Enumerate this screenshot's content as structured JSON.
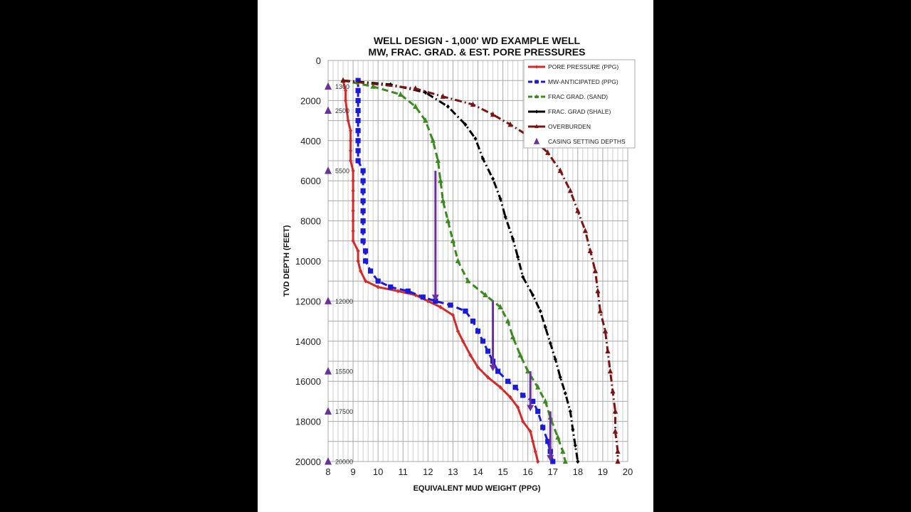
{
  "page": {
    "background": "#ffffff",
    "frame": "#000000"
  },
  "chart_data": {
    "type": "line",
    "title": "WELL DESIGN - 1,000' WD EXAMPLE WELL",
    "subtitle": "MW, FRAC. GRAD. & EST. PORE PRESSURES",
    "xlabel": "EQUIVALENT MUD WEIGHT  (PPG)",
    "ylabel": "TVD  DEPTH  (FEET)",
    "xlim": [
      8,
      20
    ],
    "ylim": [
      0,
      20000
    ],
    "y_inverted": true,
    "grid": true,
    "x_ticks": [
      "8",
      "9",
      "10",
      "11",
      "12",
      "13",
      "14",
      "15",
      "16",
      "17",
      "18",
      "19",
      "20"
    ],
    "y_ticks": [
      "0",
      "2000",
      "4000",
      "6000",
      "8000",
      "10000",
      "12000",
      "14000",
      "16000",
      "18000",
      "20000"
    ],
    "legend_position": "upper right",
    "series": [
      {
        "name": "PORE PRESSURE (PPG)",
        "color": "#d42a2a",
        "style": "solid",
        "marker": "diamond",
        "points": [
          [
            8.6,
            1000
          ],
          [
            8.7,
            1500
          ],
          [
            8.7,
            2000
          ],
          [
            8.8,
            3000
          ],
          [
            8.9,
            3500
          ],
          [
            8.9,
            4000
          ],
          [
            8.9,
            4500
          ],
          [
            8.9,
            5000
          ],
          [
            9.0,
            5500
          ],
          [
            9.0,
            6000
          ],
          [
            9.0,
            6500
          ],
          [
            9.0,
            7000
          ],
          [
            9.0,
            7500
          ],
          [
            9.0,
            8000
          ],
          [
            9.0,
            8500
          ],
          [
            9.0,
            9000
          ],
          [
            9.2,
            9500
          ],
          [
            9.2,
            10000
          ],
          [
            9.3,
            10500
          ],
          [
            9.5,
            11000
          ],
          [
            10.0,
            11300
          ],
          [
            10.8,
            11500
          ],
          [
            11.5,
            11700
          ],
          [
            12.0,
            12000
          ],
          [
            12.5,
            12300
          ],
          [
            13.0,
            12700
          ],
          [
            13.2,
            13500
          ],
          [
            13.4,
            14000
          ],
          [
            13.7,
            14700
          ],
          [
            14.0,
            15300
          ],
          [
            14.4,
            15800
          ],
          [
            14.9,
            16300
          ],
          [
            15.3,
            16800
          ],
          [
            15.6,
            17300
          ],
          [
            15.8,
            18000
          ],
          [
            16.1,
            18500
          ],
          [
            16.2,
            19000
          ],
          [
            16.3,
            19500
          ],
          [
            16.4,
            20000
          ]
        ]
      },
      {
        "name": "MW-ANTICIPATED  (PPG)",
        "color": "#1a1adc",
        "style": "dashed",
        "marker": "square",
        "points": [
          [
            9.2,
            1000
          ],
          [
            9.2,
            1500
          ],
          [
            9.2,
            2000
          ],
          [
            9.2,
            2500
          ],
          [
            9.2,
            3000
          ],
          [
            9.2,
            3500
          ],
          [
            9.2,
            4000
          ],
          [
            9.2,
            4500
          ],
          [
            9.2,
            5000
          ],
          [
            9.4,
            5500
          ],
          [
            9.4,
            6000
          ],
          [
            9.4,
            6500
          ],
          [
            9.4,
            7000
          ],
          [
            9.4,
            7500
          ],
          [
            9.4,
            8000
          ],
          [
            9.4,
            8500
          ],
          [
            9.4,
            9000
          ],
          [
            9.5,
            9500
          ],
          [
            9.5,
            10000
          ],
          [
            9.7,
            10500
          ],
          [
            10.0,
            11000
          ],
          [
            10.5,
            11300
          ],
          [
            11.2,
            11500
          ],
          [
            11.8,
            11800
          ],
          [
            12.3,
            12000
          ],
          [
            12.9,
            12200
          ],
          [
            13.5,
            12500
          ],
          [
            13.8,
            13000
          ],
          [
            14.0,
            13500
          ],
          [
            14.2,
            14000
          ],
          [
            14.4,
            14500
          ],
          [
            14.6,
            15000
          ],
          [
            14.8,
            15500
          ],
          [
            15.2,
            16000
          ],
          [
            15.5,
            16300
          ],
          [
            15.8,
            16700
          ],
          [
            16.2,
            17000
          ],
          [
            16.4,
            17500
          ],
          [
            16.6,
            18300
          ],
          [
            16.8,
            19000
          ],
          [
            16.9,
            19500
          ],
          [
            17.0,
            20000
          ]
        ]
      },
      {
        "name": "FRAC GRAD. (SAND)",
        "color": "#3a8a1e",
        "style": "dashed",
        "marker": "triangle",
        "points": [
          [
            8.6,
            1000
          ],
          [
            9.8,
            1300
          ],
          [
            10.9,
            1700
          ],
          [
            11.5,
            2300
          ],
          [
            11.9,
            3000
          ],
          [
            12.2,
            4000
          ],
          [
            12.4,
            5000
          ],
          [
            12.5,
            6000
          ],
          [
            12.6,
            7000
          ],
          [
            12.8,
            8000
          ],
          [
            13.0,
            9000
          ],
          [
            13.2,
            10000
          ],
          [
            13.6,
            11000
          ],
          [
            14.3,
            11700
          ],
          [
            14.9,
            12300
          ],
          [
            15.2,
            13000
          ],
          [
            15.4,
            13800
          ],
          [
            15.7,
            14700
          ],
          [
            16.0,
            15500
          ],
          [
            16.4,
            16300
          ],
          [
            16.7,
            17000
          ],
          [
            16.9,
            17800
          ],
          [
            17.2,
            18800
          ],
          [
            17.4,
            19500
          ],
          [
            17.5,
            20000
          ]
        ]
      },
      {
        "name": "FRAC. GRAD (SHALE)",
        "color": "#000000",
        "style": "dashdot",
        "marker": "diamond",
        "points": [
          [
            8.6,
            1000
          ],
          [
            10.5,
            1200
          ],
          [
            11.9,
            1600
          ],
          [
            12.8,
            2300
          ],
          [
            13.5,
            3200
          ],
          [
            13.9,
            3900
          ],
          [
            14.2,
            4900
          ],
          [
            14.6,
            5900
          ],
          [
            14.9,
            6900
          ],
          [
            15.1,
            7800
          ],
          [
            15.4,
            8900
          ],
          [
            15.6,
            9800
          ],
          [
            15.8,
            10800
          ],
          [
            16.2,
            11700
          ],
          [
            16.5,
            12500
          ],
          [
            16.7,
            13300
          ],
          [
            16.9,
            14100
          ],
          [
            17.1,
            14900
          ],
          [
            17.3,
            15800
          ],
          [
            17.5,
            16600
          ],
          [
            17.7,
            17500
          ],
          [
            17.8,
            18400
          ],
          [
            17.9,
            19200
          ],
          [
            18.0,
            20000
          ]
        ]
      },
      {
        "name": "OVERBURDEN",
        "color": "#7a1414",
        "style": "dashdot",
        "marker": "triangle",
        "points": [
          [
            8.6,
            1000
          ],
          [
            11.5,
            1400
          ],
          [
            12.6,
            1800
          ],
          [
            13.8,
            2200
          ],
          [
            14.6,
            2700
          ],
          [
            15.3,
            3200
          ],
          [
            16.2,
            3900
          ],
          [
            16.8,
            4600
          ],
          [
            17.3,
            5500
          ],
          [
            17.7,
            6500
          ],
          [
            18.0,
            7500
          ],
          [
            18.3,
            8500
          ],
          [
            18.5,
            9500
          ],
          [
            18.7,
            10500
          ],
          [
            18.8,
            11500
          ],
          [
            18.9,
            12500
          ],
          [
            19.1,
            13500
          ],
          [
            19.2,
            14500
          ],
          [
            19.3,
            15500
          ],
          [
            19.4,
            16500
          ],
          [
            19.5,
            17500
          ],
          [
            19.5,
            18500
          ],
          [
            19.6,
            19500
          ],
          [
            19.6,
            20000
          ]
        ]
      }
    ],
    "casing_setting_depths": {
      "name": "CASING SETTING DEPTHS",
      "color": "#6a30a0",
      "marker": "triangle",
      "x": 8,
      "depths": [
        1300,
        2500,
        5500,
        12000,
        15500,
        17500,
        20000
      ],
      "labels": [
        "1300",
        "2500",
        "5500",
        "12000",
        "15500",
        "17500",
        "20000"
      ]
    },
    "annotations": {
      "type": "arrows",
      "color": "#6a30a0",
      "arrows": [
        {
          "x": 12.3,
          "from": 5500,
          "to": 12000
        },
        {
          "x": 14.6,
          "from": 12000,
          "to": 15500
        },
        {
          "x": 16.1,
          "from": 15500,
          "to": 17500
        },
        {
          "x": 16.9,
          "from": 17500,
          "to": 20000
        }
      ]
    }
  }
}
